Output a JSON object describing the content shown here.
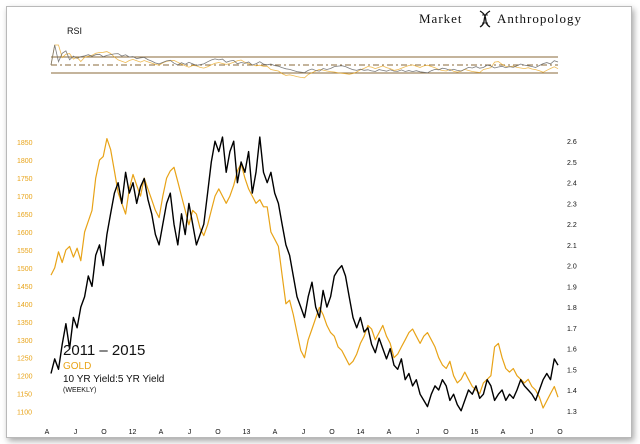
{
  "brand": {
    "left": "Market",
    "right": "Anthropology"
  },
  "annotation": {
    "line1": "2011 – 2015",
    "line2": "GOLD",
    "line3": "10 YR Yield:5 YR Yield",
    "line4": "(WEEKLY)"
  },
  "colors": {
    "gold": "#e8a317",
    "black": "#000000",
    "rsi_gray": "#6e6e6e",
    "rsi_bound": "#8a6a3a",
    "text": "#111111"
  },
  "chart_data": [
    {
      "type": "line",
      "title": "RSI",
      "series": [],
      "ylim": [
        0,
        100
      ],
      "levels": [
        30,
        50,
        70
      ],
      "grid": false,
      "legend": "none"
    },
    {
      "type": "line",
      "x_ticks": [
        "A",
        "J",
        "O",
        "12",
        "A",
        "J",
        "O",
        "13",
        "A",
        "J",
        "O",
        "14",
        "A",
        "J",
        "O",
        "15",
        "A",
        "J",
        "O"
      ],
      "y_left_ticks": [
        1100,
        1150,
        1200,
        1250,
        1300,
        1350,
        1400,
        1450,
        1500,
        1550,
        1600,
        1650,
        1700,
        1750,
        1800,
        1850
      ],
      "y_right_ticks": [
        1.3,
        1.4,
        1.5,
        1.6,
        1.7,
        1.8,
        1.9,
        2.0,
        2.1,
        2.2,
        2.3,
        2.4,
        2.5,
        2.6
      ],
      "ylim_left": [
        1085,
        1870
      ],
      "ylim_right": [
        1.27,
        2.63
      ],
      "grid": false,
      "legend": "none",
      "series": [
        {
          "axis": "left",
          "color": "#e8a317",
          "points": [
            [
              0,
              1480
            ],
            [
              1,
              1500
            ],
            [
              2,
              1545
            ],
            [
              3,
              1515
            ],
            [
              4,
              1550
            ],
            [
              5,
              1560
            ],
            [
              6,
              1530
            ],
            [
              7,
              1555
            ],
            [
              8,
              1520
            ],
            [
              9,
              1600
            ],
            [
              10,
              1630
            ],
            [
              11,
              1660
            ],
            [
              12,
              1750
            ],
            [
              13,
              1800
            ],
            [
              14,
              1810
            ],
            [
              15,
              1860
            ],
            [
              16,
              1830
            ],
            [
              17,
              1770
            ],
            [
              18,
              1710
            ],
            [
              19,
              1680
            ],
            [
              20,
              1650
            ],
            [
              21,
              1720
            ],
            [
              22,
              1760
            ],
            [
              23,
              1730
            ],
            [
              24,
              1700
            ],
            [
              25,
              1750
            ],
            [
              26,
              1720
            ],
            [
              27,
              1690
            ],
            [
              28,
              1660
            ],
            [
              29,
              1640
            ],
            [
              30,
              1700
            ],
            [
              31,
              1750
            ],
            [
              32,
              1770
            ],
            [
              33,
              1780
            ],
            [
              34,
              1740
            ],
            [
              35,
              1700
            ],
            [
              36,
              1660
            ],
            [
              37,
              1620
            ],
            [
              38,
              1660
            ],
            [
              39,
              1650
            ],
            [
              40,
              1610
            ],
            [
              41,
              1590
            ],
            [
              42,
              1620
            ],
            [
              43,
              1660
            ],
            [
              44,
              1700
            ],
            [
              45,
              1720
            ],
            [
              46,
              1700
            ],
            [
              47,
              1680
            ],
            [
              48,
              1700
            ],
            [
              49,
              1730
            ],
            [
              50,
              1770
            ],
            [
              51,
              1790
            ],
            [
              52,
              1750
            ],
            [
              53,
              1720
            ],
            [
              54,
              1700
            ],
            [
              55,
              1680
            ],
            [
              56,
              1690
            ],
            [
              57,
              1670
            ],
            [
              58,
              1670
            ],
            [
              59,
              1600
            ],
            [
              60,
              1580
            ],
            [
              61,
              1560
            ],
            [
              62,
              1480
            ],
            [
              63,
              1400
            ],
            [
              64,
              1410
            ],
            [
              65,
              1370
            ],
            [
              66,
              1320
            ],
            [
              67,
              1270
            ],
            [
              68,
              1250
            ],
            [
              69,
              1300
            ],
            [
              70,
              1330
            ],
            [
              71,
              1360
            ],
            [
              72,
              1390
            ],
            [
              73,
              1370
            ],
            [
              74,
              1340
            ],
            [
              75,
              1320
            ],
            [
              76,
              1310
            ],
            [
              77,
              1280
            ],
            [
              78,
              1270
            ],
            [
              79,
              1250
            ],
            [
              80,
              1230
            ],
            [
              81,
              1240
            ],
            [
              82,
              1260
            ],
            [
              83,
              1290
            ],
            [
              84,
              1310
            ],
            [
              85,
              1340
            ],
            [
              86,
              1330
            ],
            [
              87,
              1300
            ],
            [
              88,
              1320
            ],
            [
              89,
              1340
            ],
            [
              90,
              1310
            ],
            [
              91,
              1290
            ],
            [
              92,
              1250
            ],
            [
              93,
              1260
            ],
            [
              94,
              1280
            ],
            [
              95,
              1300
            ],
            [
              96,
              1320
            ],
            [
              97,
              1330
            ],
            [
              98,
              1310
            ],
            [
              99,
              1290
            ],
            [
              100,
              1310
            ],
            [
              101,
              1320
            ],
            [
              102,
              1300
            ],
            [
              103,
              1280
            ],
            [
              104,
              1250
            ],
            [
              105,
              1230
            ],
            [
              106,
              1220
            ],
            [
              107,
              1240
            ],
            [
              108,
              1200
            ],
            [
              109,
              1180
            ],
            [
              110,
              1190
            ],
            [
              111,
              1210
            ],
            [
              112,
              1190
            ],
            [
              113,
              1170
            ],
            [
              114,
              1160
            ],
            [
              115,
              1150
            ],
            [
              116,
              1180
            ],
            [
              117,
              1190
            ],
            [
              118,
              1200
            ],
            [
              119,
              1280
            ],
            [
              120,
              1290
            ],
            [
              121,
              1250
            ],
            [
              122,
              1220
            ],
            [
              123,
              1210
            ],
            [
              124,
              1220
            ],
            [
              125,
              1200
            ],
            [
              126,
              1190
            ],
            [
              127,
              1180
            ],
            [
              128,
              1190
            ],
            [
              129,
              1170
            ],
            [
              130,
              1160
            ],
            [
              131,
              1140
            ],
            [
              132,
              1110
            ],
            [
              133,
              1130
            ],
            [
              134,
              1150
            ],
            [
              135,
              1170
            ],
            [
              136,
              1140
            ]
          ]
        },
        {
          "axis": "right",
          "color": "#000000",
          "points": [
            [
              0,
              1.48
            ],
            [
              1,
              1.55
            ],
            [
              2,
              1.5
            ],
            [
              3,
              1.62
            ],
            [
              4,
              1.72
            ],
            [
              5,
              1.6
            ],
            [
              6,
              1.75
            ],
            [
              7,
              1.7
            ],
            [
              8,
              1.8
            ],
            [
              9,
              1.85
            ],
            [
              10,
              1.95
            ],
            [
              11,
              1.9
            ],
            [
              12,
              2.05
            ],
            [
              13,
              2.1
            ],
            [
              14,
              2.0
            ],
            [
              15,
              2.15
            ],
            [
              16,
              2.25
            ],
            [
              17,
              2.35
            ],
            [
              18,
              2.4
            ],
            [
              19,
              2.3
            ],
            [
              20,
              2.45
            ],
            [
              21,
              2.35
            ],
            [
              22,
              2.4
            ],
            [
              23,
              2.3
            ],
            [
              24,
              2.38
            ],
            [
              25,
              2.42
            ],
            [
              26,
              2.32
            ],
            [
              27,
              2.25
            ],
            [
              28,
              2.15
            ],
            [
              29,
              2.1
            ],
            [
              30,
              2.2
            ],
            [
              31,
              2.3
            ],
            [
              32,
              2.35
            ],
            [
              33,
              2.2
            ],
            [
              34,
              2.1
            ],
            [
              35,
              2.25
            ],
            [
              36,
              2.15
            ],
            [
              37,
              2.3
            ],
            [
              38,
              2.2
            ],
            [
              39,
              2.1
            ],
            [
              40,
              2.15
            ],
            [
              41,
              2.2
            ],
            [
              42,
              2.35
            ],
            [
              43,
              2.5
            ],
            [
              44,
              2.6
            ],
            [
              45,
              2.55
            ],
            [
              46,
              2.62
            ],
            [
              47,
              2.45
            ],
            [
              48,
              2.55
            ],
            [
              49,
              2.6
            ],
            [
              50,
              2.4
            ],
            [
              51,
              2.5
            ],
            [
              52,
              2.45
            ],
            [
              53,
              2.55
            ],
            [
              54,
              2.35
            ],
            [
              55,
              2.45
            ],
            [
              56,
              2.62
            ],
            [
              57,
              2.45
            ],
            [
              58,
              2.4
            ],
            [
              59,
              2.45
            ],
            [
              60,
              2.35
            ],
            [
              61,
              2.3
            ],
            [
              62,
              2.2
            ],
            [
              63,
              2.1
            ],
            [
              64,
              2.05
            ],
            [
              65,
              1.95
            ],
            [
              66,
              1.85
            ],
            [
              67,
              1.8
            ],
            [
              68,
              1.75
            ],
            [
              69,
              1.85
            ],
            [
              70,
              1.92
            ],
            [
              71,
              1.8
            ],
            [
              72,
              1.75
            ],
            [
              73,
              1.88
            ],
            [
              74,
              1.8
            ],
            [
              75,
              1.85
            ],
            [
              76,
              1.95
            ],
            [
              77,
              1.98
            ],
            [
              78,
              2.0
            ],
            [
              79,
              1.95
            ],
            [
              80,
              1.85
            ],
            [
              81,
              1.75
            ],
            [
              82,
              1.7
            ],
            [
              83,
              1.75
            ],
            [
              84,
              1.68
            ],
            [
              85,
              1.7
            ],
            [
              86,
              1.62
            ],
            [
              87,
              1.58
            ],
            [
              88,
              1.65
            ],
            [
              89,
              1.6
            ],
            [
              90,
              1.55
            ],
            [
              91,
              1.6
            ],
            [
              92,
              1.52
            ],
            [
              93,
              1.5
            ],
            [
              94,
              1.55
            ],
            [
              95,
              1.45
            ],
            [
              96,
              1.48
            ],
            [
              97,
              1.42
            ],
            [
              98,
              1.45
            ],
            [
              99,
              1.38
            ],
            [
              100,
              1.35
            ],
            [
              101,
              1.32
            ],
            [
              102,
              1.38
            ],
            [
              103,
              1.42
            ],
            [
              104,
              1.4
            ],
            [
              105,
              1.45
            ],
            [
              106,
              1.42
            ],
            [
              107,
              1.35
            ],
            [
              108,
              1.38
            ],
            [
              109,
              1.33
            ],
            [
              110,
              1.3
            ],
            [
              111,
              1.35
            ],
            [
              112,
              1.4
            ],
            [
              113,
              1.38
            ],
            [
              114,
              1.42
            ],
            [
              115,
              1.36
            ],
            [
              116,
              1.38
            ],
            [
              117,
              1.45
            ],
            [
              118,
              1.42
            ],
            [
              119,
              1.35
            ],
            [
              120,
              1.38
            ],
            [
              121,
              1.4
            ],
            [
              122,
              1.35
            ],
            [
              123,
              1.38
            ],
            [
              124,
              1.36
            ],
            [
              125,
              1.4
            ],
            [
              126,
              1.45
            ],
            [
              127,
              1.42
            ],
            [
              128,
              1.4
            ],
            [
              129,
              1.38
            ],
            [
              130,
              1.35
            ],
            [
              131,
              1.4
            ],
            [
              132,
              1.45
            ],
            [
              133,
              1.48
            ],
            [
              134,
              1.45
            ],
            [
              135,
              1.55
            ],
            [
              136,
              1.52
            ]
          ]
        }
      ]
    }
  ]
}
